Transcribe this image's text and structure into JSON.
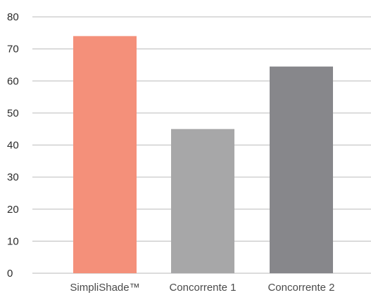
{
  "chart_data": {
    "type": "bar",
    "categories": [
      "SimpliShade™",
      "Concorrente 1",
      "Concorrente 2"
    ],
    "values": [
      74,
      45,
      64.5
    ],
    "colors": [
      "#f4907a",
      "#a7a7a8",
      "#87878b"
    ],
    "ylim": [
      0,
      80
    ],
    "yticks": [
      0,
      10,
      20,
      30,
      40,
      50,
      60,
      70,
      80
    ],
    "grid": true,
    "gridline_color": "#c8c8c8",
    "legend": "none"
  }
}
